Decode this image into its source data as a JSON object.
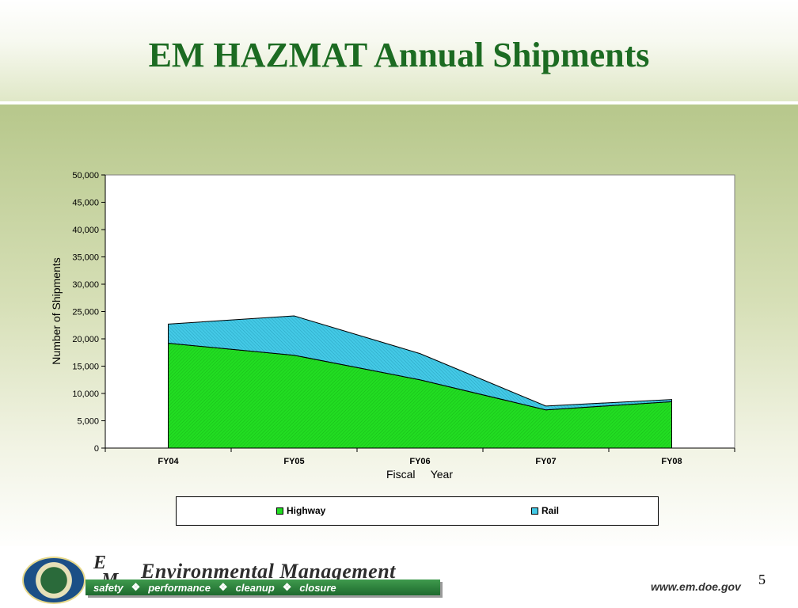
{
  "slide": {
    "title": "EM HAZMAT Annual Shipments",
    "page_number": "5"
  },
  "chart_data": {
    "type": "area",
    "stacked": true,
    "categories": [
      "FY04",
      "FY05",
      "FY06",
      "FY07",
      "FY08"
    ],
    "series": [
      {
        "name": "Highway",
        "values": [
          19200,
          17000,
          12500,
          7000,
          8500
        ],
        "color": "#22dd22"
      },
      {
        "name": "Rail",
        "values": [
          3500,
          7200,
          4800,
          700,
          400
        ],
        "color": "#43c9e6"
      }
    ],
    "xlabel": "Fiscal     Year",
    "ylabel": "Number of Shipments",
    "ylim": [
      0,
      50000
    ],
    "yticks": [
      "0",
      "5,000",
      "10,000",
      "15,000",
      "20,000",
      "25,000",
      "30,000",
      "35,000",
      "40,000",
      "45,000",
      "50,000"
    ],
    "legend_position": "bottom",
    "grid": false
  },
  "footer": {
    "logo_letters": [
      "E",
      "M"
    ],
    "org_name": "Environmental Management",
    "motto": [
      "safety",
      "performance",
      "cleanup",
      "closure"
    ],
    "motto_separator": "❖",
    "website": "www.em.doe.gov"
  }
}
